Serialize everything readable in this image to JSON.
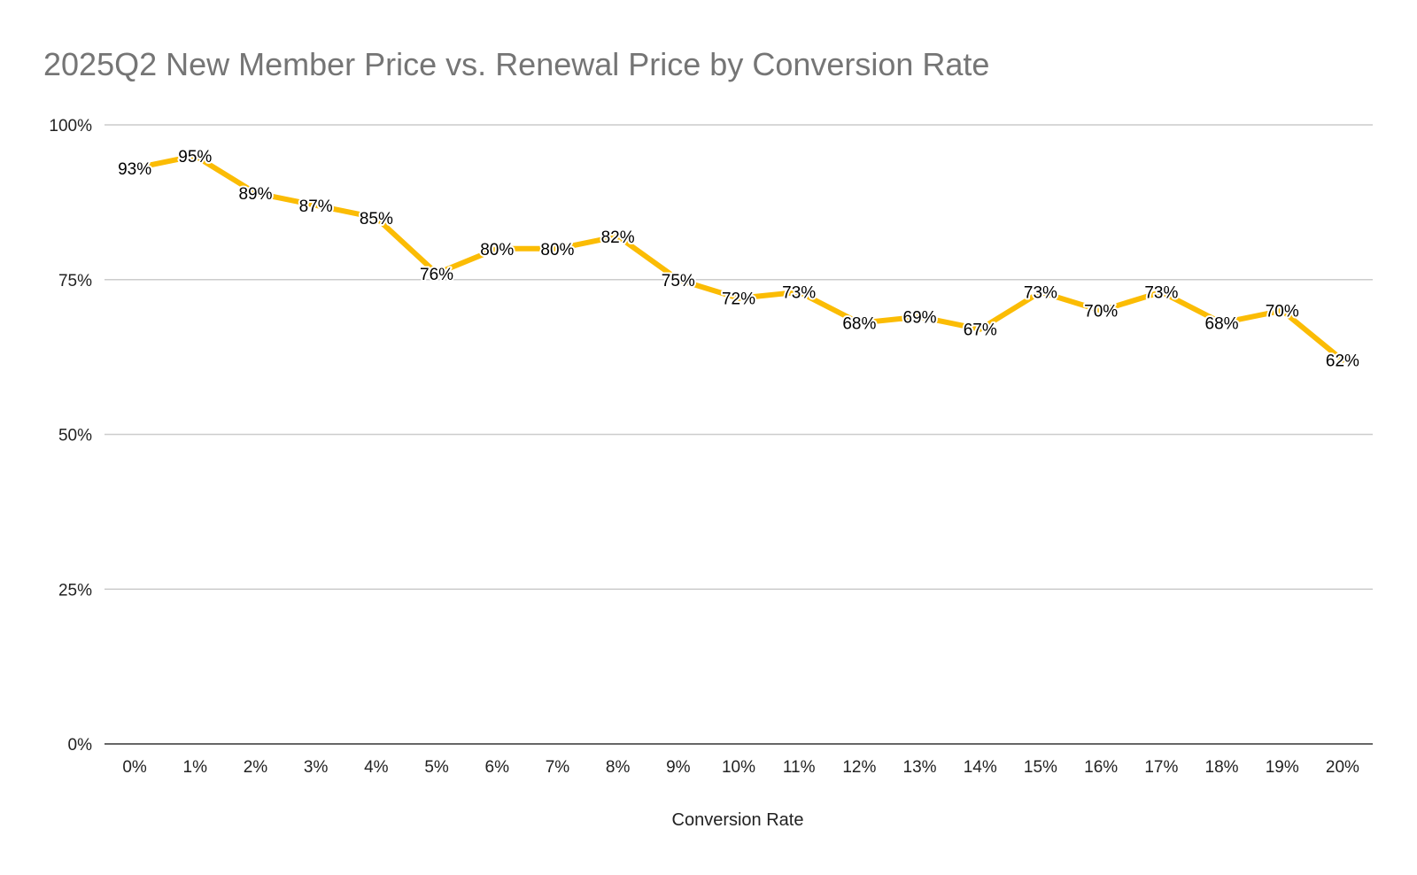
{
  "chart_data": {
    "type": "line",
    "title": "2025Q2 New Member Price vs. Renewal Price by Conversion Rate",
    "xlabel": "Conversion Rate",
    "ylabel": "",
    "categories": [
      "0%",
      "1%",
      "2%",
      "3%",
      "4%",
      "5%",
      "6%",
      "7%",
      "8%",
      "9%",
      "10%",
      "11%",
      "12%",
      "13%",
      "14%",
      "15%",
      "16%",
      "17%",
      "18%",
      "19%",
      "20%"
    ],
    "series": [
      {
        "name": "New Member Price vs. Renewal Price",
        "color": "#fbbc04",
        "values": [
          93,
          95,
          89,
          87,
          85,
          76,
          80,
          80,
          82,
          75,
          72,
          73,
          68,
          69,
          67,
          73,
          70,
          73,
          68,
          70,
          62
        ],
        "data_labels": [
          "93%",
          "95%",
          "89%",
          "87%",
          "85%",
          "76%",
          "80%",
          "80%",
          "82%",
          "75%",
          "72%",
          "73%",
          "68%",
          "69%",
          "67%",
          "73%",
          "70%",
          "73%",
          "68%",
          "70%",
          "62%"
        ]
      }
    ],
    "ylim": [
      0,
      100
    ],
    "yticks": [
      0,
      25,
      50,
      75,
      100
    ],
    "ytick_labels": [
      "0%",
      "25%",
      "50%",
      "75%",
      "100%"
    ],
    "grid": true,
    "legend": "none"
  }
}
